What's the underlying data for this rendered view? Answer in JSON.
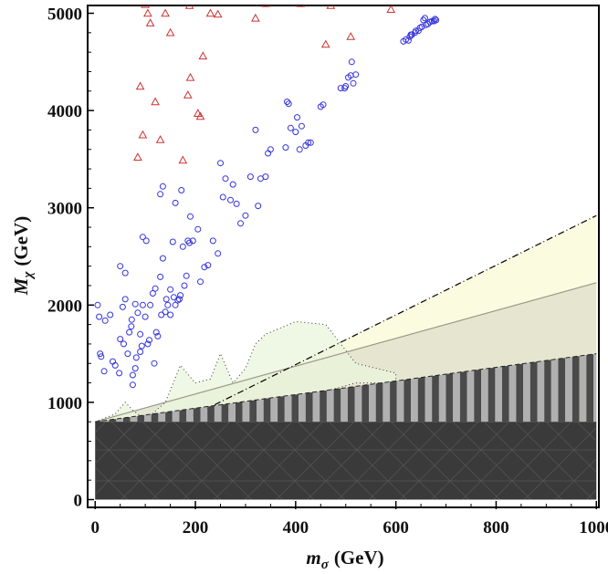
{
  "chart_data": {
    "type": "scatter",
    "title": "",
    "xlabel": "m_σ (GeV)",
    "xlabel_parts": {
      "symbol": "m",
      "sub": "σ",
      "unit": "(GeV)"
    },
    "ylabel": "M_χ (GeV)",
    "ylabel_parts": {
      "symbol": "M",
      "sub": "χ",
      "unit": "(GeV)"
    },
    "xlim": [
      -15,
      1005
    ],
    "ylim": [
      -80,
      5080
    ],
    "x_ticks": [
      0,
      200,
      400,
      600,
      800,
      1000
    ],
    "y_ticks": [
      0,
      1000,
      2000,
      3000,
      4000,
      5000
    ],
    "x_tick_labels": [
      "0",
      "200",
      "400",
      "600",
      "800",
      "1000"
    ],
    "y_tick_labels": [
      "0",
      "1000",
      "2000",
      "3000",
      "4000",
      "5000"
    ],
    "colors": {
      "circle": "#3333dd",
      "triangle": "#cc3333",
      "dark_band": "#3a3a3a",
      "stripe_dark": "#4a4a4a",
      "stripe_light": "#b0b0b0",
      "yellow_region": "#fbfbe0",
      "olive_region": "#e2e2cc",
      "green_region": "#eaf6dc"
    },
    "regions": {
      "dark_band": {
        "x_range": [
          0,
          1000
        ],
        "y_range": [
          0,
          800
        ]
      },
      "striped_band": {
        "bottom": 800,
        "top_line": [
          [
            0,
            800
          ],
          [
            1000,
            1500
          ]
        ],
        "stripe_width": 28
      },
      "yellow_region": {
        "boundary": [
          [
            170,
            800
          ],
          [
            1000,
            2920
          ]
        ]
      },
      "olive_region": {
        "boundary": [
          [
            0,
            800
          ],
          [
            1000,
            2230
          ]
        ]
      },
      "green_region": {
        "boundary": [
          [
            0,
            800
          ],
          [
            40,
            880
          ],
          [
            60,
            1000
          ],
          [
            75,
            920
          ],
          [
            100,
            820
          ],
          [
            140,
            1000
          ],
          [
            170,
            1380
          ],
          [
            200,
            1200
          ],
          [
            230,
            1240
          ],
          [
            250,
            1500
          ],
          [
            275,
            1200
          ],
          [
            300,
            1350
          ],
          [
            320,
            1600
          ],
          [
            340,
            1700
          ],
          [
            400,
            1830
          ],
          [
            460,
            1800
          ],
          [
            520,
            1400
          ],
          [
            600,
            1300
          ],
          [
            600,
            1200
          ],
          [
            520,
            1200
          ],
          [
            450,
            1100
          ],
          [
            400,
            1000
          ],
          [
            300,
            950
          ],
          [
            200,
            880
          ],
          [
            150,
            820
          ],
          [
            100,
            800
          ]
        ]
      }
    },
    "series": [
      {
        "name": "circles",
        "marker": "circle",
        "points": [
          [
            5,
            2000
          ],
          [
            8,
            1880
          ],
          [
            10,
            1500
          ],
          [
            12,
            1470
          ],
          [
            18,
            1320
          ],
          [
            20,
            1840
          ],
          [
            30,
            1900
          ],
          [
            35,
            1420
          ],
          [
            40,
            1380
          ],
          [
            48,
            1300
          ],
          [
            50,
            2400
          ],
          [
            50,
            1650
          ],
          [
            55,
            1980
          ],
          [
            57,
            1600
          ],
          [
            60,
            2060
          ],
          [
            60,
            2330
          ],
          [
            65,
            1500
          ],
          [
            68,
            1720
          ],
          [
            72,
            1780
          ],
          [
            73,
            1850
          ],
          [
            75,
            1280
          ],
          [
            75,
            1180
          ],
          [
            80,
            2010
          ],
          [
            80,
            1350
          ],
          [
            82,
            1460
          ],
          [
            85,
            1920
          ],
          [
            90,
            1520
          ],
          [
            90,
            1700
          ],
          [
            93,
            1580
          ],
          [
            95,
            2000
          ],
          [
            95,
            2700
          ],
          [
            100,
            1880
          ],
          [
            102,
            2660
          ],
          [
            105,
            1600
          ],
          [
            108,
            1640
          ],
          [
            110,
            2000
          ],
          [
            115,
            2120
          ],
          [
            118,
            1400
          ],
          [
            120,
            2170
          ],
          [
            122,
            1720
          ],
          [
            125,
            1680
          ],
          [
            130,
            2290
          ],
          [
            130,
            3140
          ],
          [
            132,
            1900
          ],
          [
            135,
            3220
          ],
          [
            135,
            2480
          ],
          [
            140,
            1930
          ],
          [
            142,
            2060
          ],
          [
            145,
            2000
          ],
          [
            150,
            1900
          ],
          [
            150,
            2160
          ],
          [
            155,
            2650
          ],
          [
            157,
            2080
          ],
          [
            160,
            2000
          ],
          [
            160,
            3050
          ],
          [
            165,
            2050
          ],
          [
            168,
            2060
          ],
          [
            170,
            2100
          ],
          [
            172,
            3180
          ],
          [
            175,
            2600
          ],
          [
            178,
            2200
          ],
          [
            182,
            2300
          ],
          [
            185,
            2660
          ],
          [
            188,
            2640
          ],
          [
            190,
            2910
          ],
          [
            195,
            2660
          ],
          [
            205,
            2780
          ],
          [
            210,
            2240
          ],
          [
            218,
            2390
          ],
          [
            225,
            2410
          ],
          [
            235,
            2660
          ],
          [
            245,
            2530
          ],
          [
            250,
            3460
          ],
          [
            255,
            3110
          ],
          [
            260,
            3300
          ],
          [
            270,
            3080
          ],
          [
            275,
            3240
          ],
          [
            282,
            3040
          ],
          [
            290,
            2840
          ],
          [
            300,
            2920
          ],
          [
            310,
            3320
          ],
          [
            320,
            3800
          ],
          [
            325,
            3020
          ],
          [
            330,
            3300
          ],
          [
            340,
            3320
          ],
          [
            345,
            3560
          ],
          [
            350,
            3600
          ],
          [
            380,
            3620
          ],
          [
            383,
            4090
          ],
          [
            386,
            4070
          ],
          [
            390,
            3820
          ],
          [
            400,
            3780
          ],
          [
            403,
            3930
          ],
          [
            408,
            3600
          ],
          [
            412,
            3840
          ],
          [
            420,
            3640
          ],
          [
            425,
            3670
          ],
          [
            430,
            3670
          ],
          [
            450,
            4040
          ],
          [
            455,
            4060
          ],
          [
            490,
            4230
          ],
          [
            498,
            4230
          ],
          [
            500,
            4250
          ],
          [
            505,
            4340
          ],
          [
            510,
            4360
          ],
          [
            512,
            4500
          ],
          [
            515,
            4280
          ],
          [
            520,
            4370
          ],
          [
            615,
            4710
          ],
          [
            620,
            4730
          ],
          [
            625,
            4720
          ],
          [
            628,
            4760
          ],
          [
            630,
            4780
          ],
          [
            632,
            4780
          ],
          [
            638,
            4800
          ],
          [
            640,
            4820
          ],
          [
            645,
            4820
          ],
          [
            648,
            4850
          ],
          [
            652,
            4860
          ],
          [
            655,
            4930
          ],
          [
            658,
            4950
          ],
          [
            660,
            4880
          ],
          [
            664,
            4890
          ],
          [
            668,
            4910
          ],
          [
            672,
            4920
          ],
          [
            676,
            4920
          ],
          [
            678,
            4940
          ],
          [
            680,
            4930
          ]
        ]
      },
      {
        "name": "triangles",
        "marker": "triangle",
        "points": [
          [
            85,
            3520
          ],
          [
            90,
            4250
          ],
          [
            95,
            3750
          ],
          [
            100,
            5090
          ],
          [
            105,
            5000
          ],
          [
            110,
            4900
          ],
          [
            120,
            4090
          ],
          [
            130,
            3700
          ],
          [
            140,
            5000
          ],
          [
            150,
            4800
          ],
          [
            175,
            3490
          ],
          [
            185,
            4160
          ],
          [
            188,
            5080
          ],
          [
            190,
            4340
          ],
          [
            205,
            3970
          ],
          [
            210,
            3940
          ],
          [
            215,
            4560
          ],
          [
            230,
            5000
          ],
          [
            245,
            4990
          ],
          [
            300,
            5120
          ],
          [
            320,
            4950
          ],
          [
            340,
            5100
          ],
          [
            400,
            5140
          ],
          [
            410,
            5100
          ],
          [
            460,
            4680
          ],
          [
            470,
            5080
          ],
          [
            510,
            4760
          ],
          [
            590,
            5040
          ],
          [
            660,
            5120
          ]
        ]
      }
    ]
  }
}
